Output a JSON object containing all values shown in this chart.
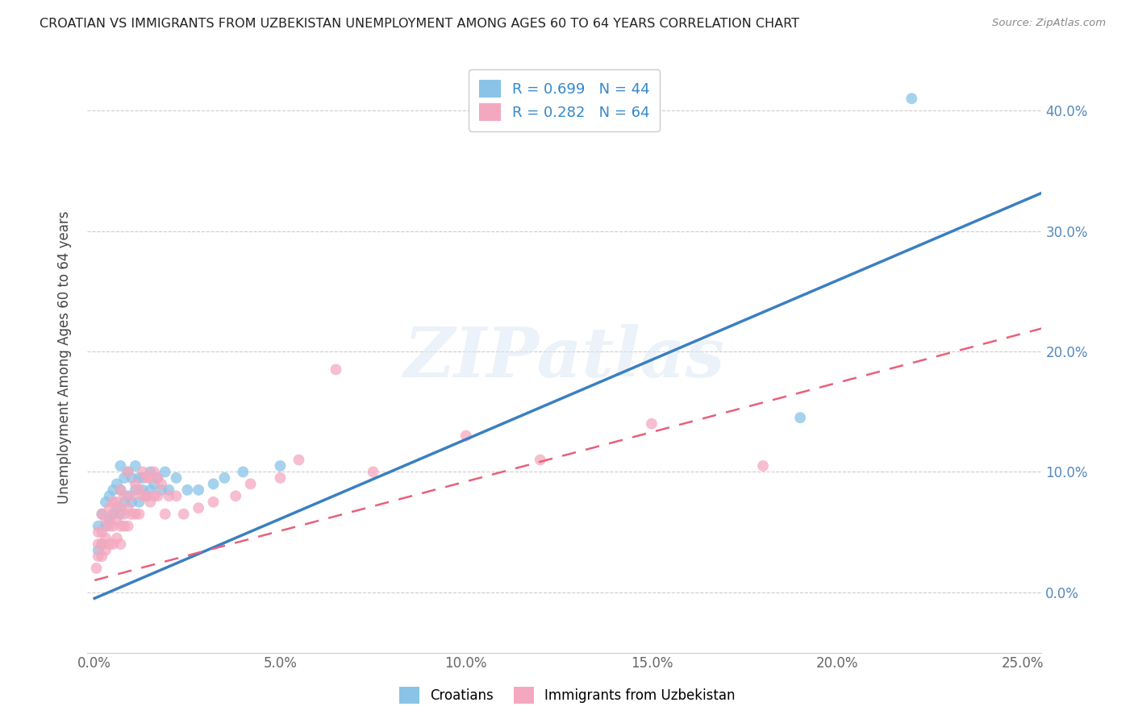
{
  "title": "CROATIAN VS IMMIGRANTS FROM UZBEKISTAN UNEMPLOYMENT AMONG AGES 60 TO 64 YEARS CORRELATION CHART",
  "source": "Source: ZipAtlas.com",
  "xlim": [
    -0.002,
    0.255
  ],
  "ylim": [
    -0.05,
    0.44
  ],
  "ylabel": "Unemployment Among Ages 60 to 64 years",
  "legend_bottom": [
    "Croatians",
    "Immigrants from Uzbekistan"
  ],
  "r_croatian": 0.699,
  "n_croatian": 44,
  "r_uzbekistan": 0.282,
  "n_uzbekistan": 64,
  "watermark": "ZIPatlas",
  "blue_scatter_color": "#89c4e8",
  "pink_scatter_color": "#f4a8bf",
  "blue_line_color": "#3a7fc1",
  "pink_line_color": "#e8607a",
  "blue_line_slope": 1.32,
  "blue_line_intercept": -0.005,
  "pink_line_slope": 0.82,
  "pink_line_intercept": 0.01,
  "xtick_vals": [
    0.0,
    0.05,
    0.1,
    0.15,
    0.2,
    0.25
  ],
  "ytick_vals": [
    0.0,
    0.1,
    0.2,
    0.3,
    0.4
  ],
  "croatian_x": [
    0.001,
    0.001,
    0.002,
    0.002,
    0.003,
    0.003,
    0.004,
    0.004,
    0.005,
    0.005,
    0.006,
    0.006,
    0.007,
    0.007,
    0.007,
    0.008,
    0.008,
    0.009,
    0.009,
    0.01,
    0.01,
    0.011,
    0.011,
    0.012,
    0.012,
    0.013,
    0.013,
    0.014,
    0.015,
    0.015,
    0.016,
    0.017,
    0.018,
    0.019,
    0.02,
    0.022,
    0.025,
    0.028,
    0.032,
    0.035,
    0.04,
    0.05,
    0.19,
    0.22
  ],
  "croatian_y": [
    0.035,
    0.055,
    0.04,
    0.065,
    0.055,
    0.075,
    0.06,
    0.08,
    0.065,
    0.085,
    0.07,
    0.09,
    0.065,
    0.085,
    0.105,
    0.075,
    0.095,
    0.08,
    0.1,
    0.075,
    0.095,
    0.085,
    0.105,
    0.075,
    0.095,
    0.085,
    0.095,
    0.08,
    0.085,
    0.1,
    0.09,
    0.095,
    0.085,
    0.1,
    0.085,
    0.095,
    0.085,
    0.085,
    0.09,
    0.095,
    0.1,
    0.105,
    0.145,
    0.41
  ],
  "uzbekistan_x": [
    0.0005,
    0.001,
    0.001,
    0.001,
    0.002,
    0.002,
    0.002,
    0.002,
    0.003,
    0.003,
    0.003,
    0.004,
    0.004,
    0.004,
    0.005,
    0.005,
    0.005,
    0.005,
    0.006,
    0.006,
    0.006,
    0.007,
    0.007,
    0.007,
    0.007,
    0.008,
    0.008,
    0.008,
    0.009,
    0.009,
    0.009,
    0.01,
    0.01,
    0.011,
    0.011,
    0.012,
    0.012,
    0.013,
    0.013,
    0.014,
    0.014,
    0.015,
    0.015,
    0.016,
    0.016,
    0.017,
    0.017,
    0.018,
    0.019,
    0.02,
    0.022,
    0.024,
    0.028,
    0.032,
    0.038,
    0.042,
    0.05,
    0.055,
    0.065,
    0.075,
    0.1,
    0.12,
    0.15,
    0.18
  ],
  "uzbekistan_y": [
    0.02,
    0.03,
    0.04,
    0.05,
    0.03,
    0.04,
    0.05,
    0.065,
    0.035,
    0.045,
    0.06,
    0.04,
    0.055,
    0.07,
    0.04,
    0.055,
    0.065,
    0.075,
    0.045,
    0.06,
    0.075,
    0.04,
    0.055,
    0.07,
    0.085,
    0.055,
    0.065,
    0.08,
    0.055,
    0.07,
    0.1,
    0.065,
    0.08,
    0.065,
    0.09,
    0.065,
    0.085,
    0.08,
    0.1,
    0.08,
    0.095,
    0.075,
    0.095,
    0.08,
    0.1,
    0.08,
    0.095,
    0.09,
    0.065,
    0.08,
    0.08,
    0.065,
    0.07,
    0.075,
    0.08,
    0.09,
    0.095,
    0.11,
    0.185,
    0.1,
    0.13,
    0.11,
    0.14,
    0.105
  ]
}
